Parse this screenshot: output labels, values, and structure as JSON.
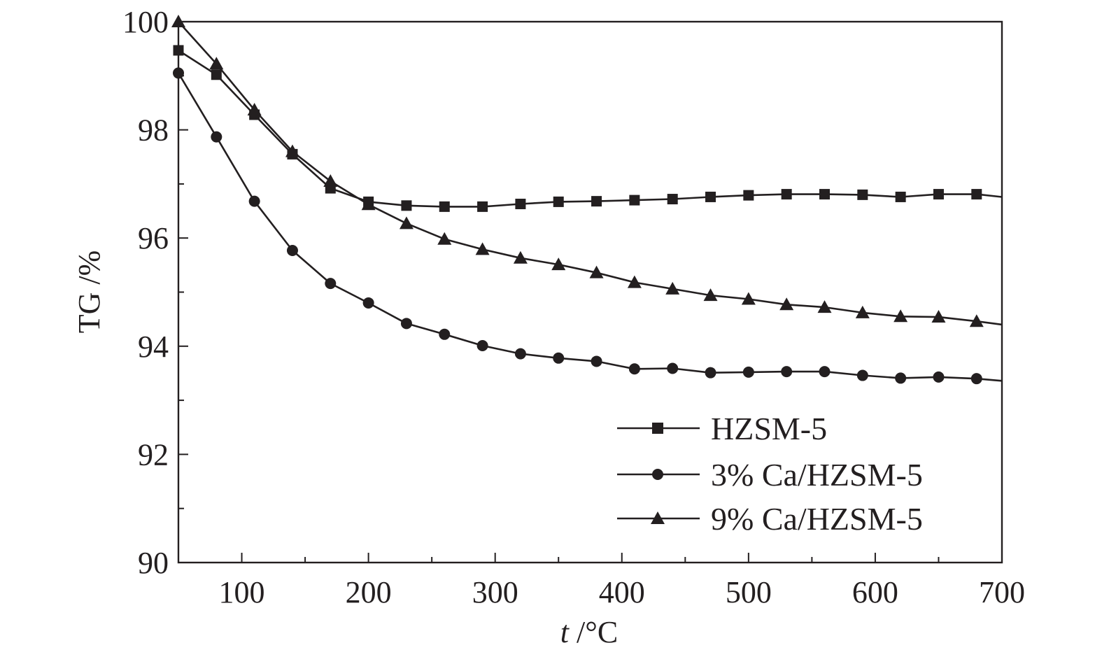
{
  "chart_data": {
    "type": "line",
    "xlabel_italic": "t",
    "xlabel_rest": " /°C",
    "ylabel": "TG /%",
    "xlim": [
      50,
      700
    ],
    "ylim": [
      90,
      100
    ],
    "xticks": [
      100,
      200,
      300,
      400,
      500,
      600,
      700
    ],
    "yticks": [
      90,
      92,
      94,
      96,
      98,
      100
    ],
    "x_minor_step": 50,
    "y_minor_step": 1,
    "grid": false,
    "legend_position": "bottom-right",
    "color": "#231f20",
    "series": [
      {
        "name": "HZSM-5",
        "marker": "square",
        "x": [
          50,
          80,
          110,
          140,
          170,
          200,
          230,
          260,
          290,
          320,
          350,
          380,
          410,
          440,
          470,
          500,
          530,
          560,
          590,
          620,
          650,
          680,
          700
        ],
        "y": [
          99.47,
          99.02,
          98.28,
          97.55,
          96.92,
          96.67,
          96.6,
          96.58,
          96.58,
          96.63,
          96.67,
          96.68,
          96.7,
          96.72,
          96.76,
          96.79,
          96.81,
          96.81,
          96.8,
          96.76,
          96.81,
          96.81,
          96.76
        ]
      },
      {
        "name": "3% Ca/HZSM-5",
        "marker": "circle",
        "x": [
          50,
          80,
          110,
          140,
          170,
          200,
          230,
          260,
          290,
          320,
          350,
          380,
          410,
          440,
          470,
          500,
          530,
          560,
          590,
          620,
          650,
          680,
          700
        ],
        "y": [
          99.05,
          97.87,
          96.68,
          95.77,
          95.16,
          94.8,
          94.42,
          94.22,
          94.01,
          93.86,
          93.78,
          93.72,
          93.58,
          93.59,
          93.51,
          93.52,
          93.53,
          93.53,
          93.46,
          93.41,
          93.43,
          93.4,
          93.36
        ]
      },
      {
        "name": "9% Ca/HZSM-5",
        "marker": "triangle",
        "x": [
          50,
          80,
          110,
          140,
          170,
          200,
          230,
          260,
          290,
          320,
          350,
          380,
          410,
          440,
          470,
          500,
          530,
          560,
          590,
          620,
          650,
          680,
          700
        ],
        "y": [
          100.0,
          99.22,
          98.37,
          97.6,
          97.05,
          96.62,
          96.27,
          95.98,
          95.79,
          95.63,
          95.51,
          95.36,
          95.18,
          95.06,
          94.94,
          94.87,
          94.77,
          94.72,
          94.62,
          94.55,
          94.54,
          94.46,
          94.4
        ]
      }
    ]
  }
}
